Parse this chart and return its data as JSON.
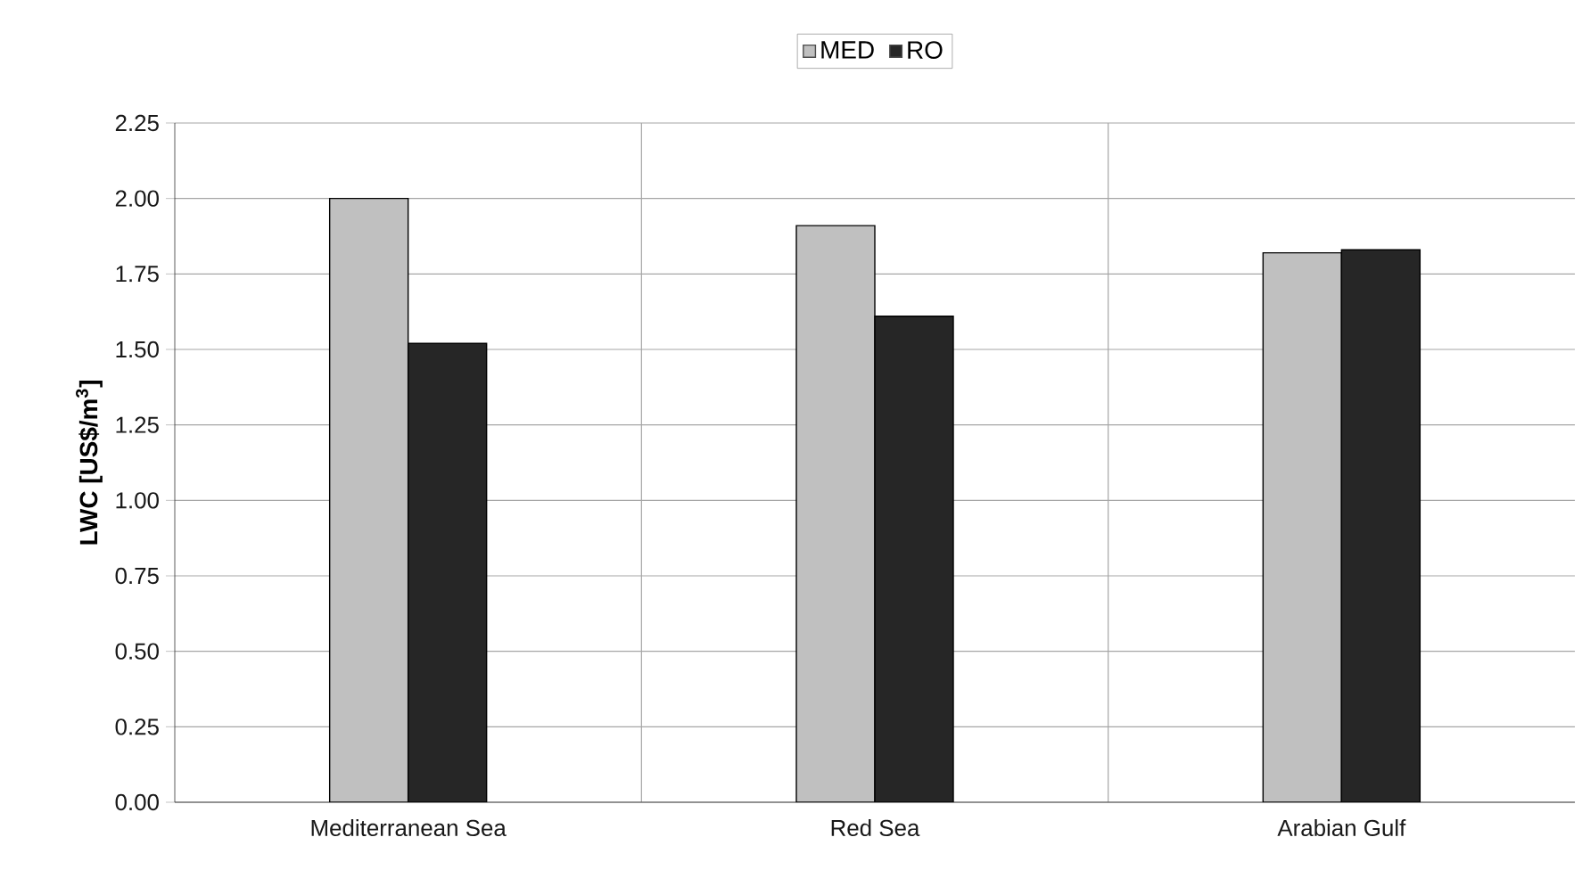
{
  "chart_data": {
    "type": "bar",
    "ylabel": "LWC [US$/m$^{3}$]",
    "categories": [
      "Mediterranean Sea",
      "Red Sea",
      "Arabian Gulf"
    ],
    "series": [
      {
        "name": "MED",
        "color": "#c0c0c0",
        "values": [
          2.0,
          1.91,
          1.82
        ]
      },
      {
        "name": "RO",
        "color": "#262626",
        "values": [
          1.52,
          1.61,
          1.83
        ]
      }
    ],
    "ylim": [
      0,
      2.25
    ],
    "yticks": [
      {
        "value": 0,
        "label": "0.00"
      },
      {
        "value": 0.25,
        "label": "0.25"
      },
      {
        "value": 0.5,
        "label": "0.50"
      },
      {
        "value": 0.75,
        "label": "0.75"
      },
      {
        "value": 1.0,
        "label": "1.00"
      },
      {
        "value": 1.25,
        "label": "1.25"
      },
      {
        "value": 1.5,
        "label": "1.50"
      },
      {
        "value": 1.75,
        "label": "1.75"
      },
      {
        "value": 2.0,
        "label": "2.00"
      },
      {
        "value": 2.25,
        "label": "2.25"
      }
    ],
    "grid": true,
    "legend": "top"
  }
}
